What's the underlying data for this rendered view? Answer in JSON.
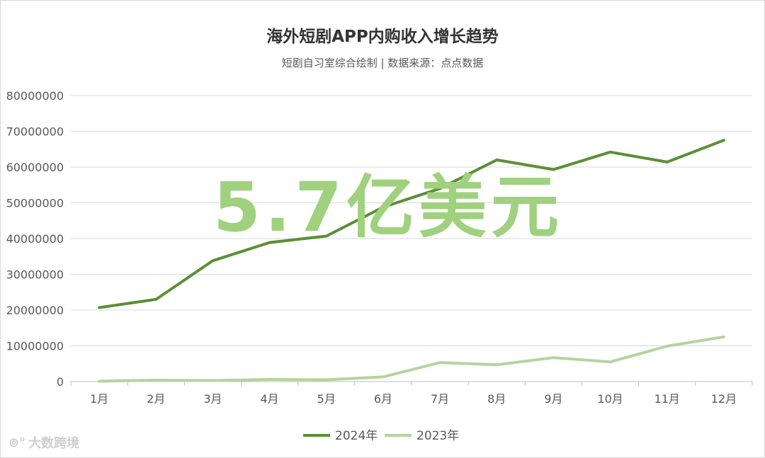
{
  "title": "海外短剧APP内购收入增长趋势",
  "subtitle": "短剧自习室综合绘制 | 数据来源：点点数据",
  "annotation": "5.7亿美元",
  "watermark": {
    "logo_icon": "ddc-logo-icon",
    "text": "大数跨境"
  },
  "colors": {
    "series_2024": "#5b8f35",
    "series_2023": "#b5d4a0",
    "annotation": "#9fd17e",
    "grid": "#d9d9d9"
  },
  "chart_data": {
    "type": "line",
    "categories": [
      "1月",
      "2月",
      "3月",
      "4月",
      "5月",
      "6月",
      "7月",
      "8月",
      "9月",
      "10月",
      "11月",
      "12月"
    ],
    "series": [
      {
        "name": "2024年",
        "values": [
          20700000,
          23000000,
          33800000,
          38900000,
          40700000,
          48800000,
          54000000,
          62000000,
          59300000,
          64200000,
          61400000,
          67500000
        ]
      },
      {
        "name": "2023年",
        "values": [
          100000,
          400000,
          300000,
          600000,
          500000,
          1300000,
          5300000,
          4700000,
          6700000,
          5500000,
          9900000,
          12500000
        ]
      }
    ],
    "yticks": [
      "0",
      "10000000",
      "20000000",
      "30000000",
      "40000000",
      "50000000",
      "60000000",
      "70000000",
      "80000000"
    ],
    "ylim": [
      0,
      80000000
    ],
    "grid": true,
    "legend_position": "bottom"
  }
}
